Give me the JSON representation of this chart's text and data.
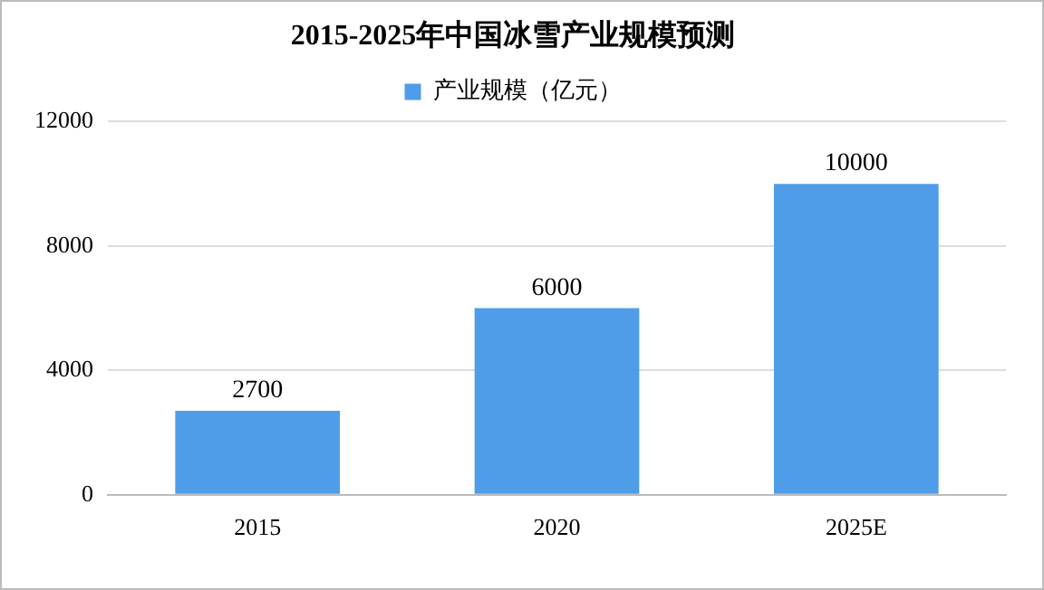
{
  "chart_data": {
    "type": "bar",
    "title": "2015-2025年中国冰雪产业规模预测",
    "categories": [
      "2015",
      "2020",
      "2025E"
    ],
    "series": [
      {
        "name": "产业规模（亿元）",
        "color": "#4f9de8",
        "values": [
          2700,
          6000,
          10000
        ]
      }
    ],
    "ylim": [
      0,
      12000
    ],
    "yticks": [
      0,
      4000,
      8000,
      12000
    ],
    "grid": "y",
    "legend": "top",
    "data_labels": true
  }
}
